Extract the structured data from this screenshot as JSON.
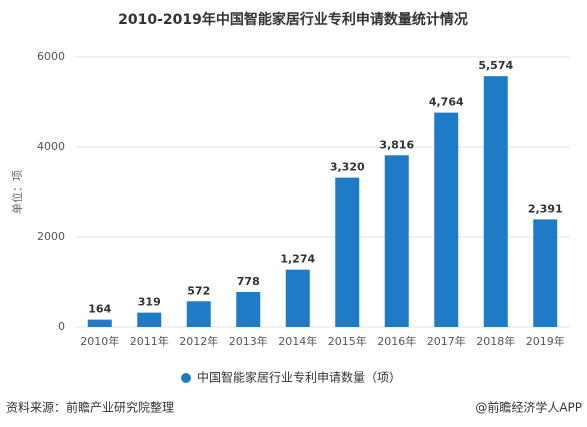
{
  "chart_data": {
    "type": "bar",
    "title": "2010-2019年中国智能家居行业专利申请数量统计情况",
    "y_label": "单位：项",
    "categories": [
      "2010年",
      "2011年",
      "2012年",
      "2013年",
      "2014年",
      "2015年",
      "2016年",
      "2017年",
      "2018年",
      "2019年"
    ],
    "series": [
      {
        "name": "中国智能家居行业专利申请数量（项）",
        "color": "#1f7bc6",
        "values": [
          164,
          319,
          572,
          778,
          1274,
          3320,
          3816,
          4764,
          5574,
          2391
        ],
        "value_labels": [
          "164",
          "319",
          "572",
          "778",
          "1,274",
          "3,320",
          "3,816",
          "4,764",
          "5,574",
          "2,391"
        ]
      }
    ],
    "ylim": [
      0,
      6000
    ],
    "yticks": [
      0,
      2000,
      4000,
      6000
    ],
    "grid": true,
    "legend": "bottom"
  },
  "footer": {
    "source": "资料来源：前瞻产业研究院整理",
    "credit": "@前瞻经济学人APP"
  }
}
